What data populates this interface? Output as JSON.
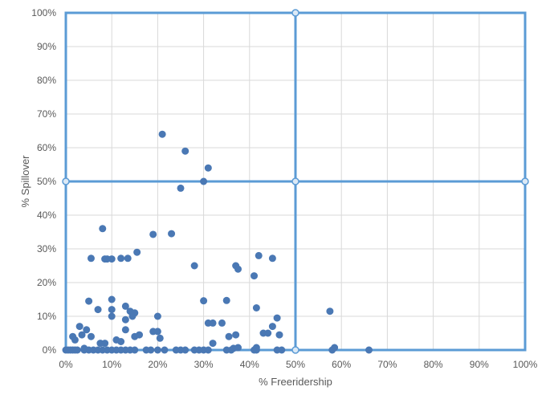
{
  "chart_data": {
    "type": "scatter",
    "xlabel": "% Freeridership",
    "ylabel": "% Spillover",
    "xlim": [
      0,
      1
    ],
    "ylim": [
      0,
      1
    ],
    "x_ticks": [
      "0%",
      "10%",
      "20%",
      "30%",
      "40%",
      "50%",
      "60%",
      "70%",
      "80%",
      "90%",
      "100%"
    ],
    "y_ticks": [
      "0%",
      "10%",
      "20%",
      "30%",
      "40%",
      "50%",
      "60%",
      "70%",
      "80%",
      "90%",
      "100%"
    ],
    "grid": true,
    "colors": {
      "marker": "#4a78b4",
      "frame": "#5b9bd5",
      "quadrant_line": "#5b9bd5",
      "quadrant_marker_fill": "#dbe9f6",
      "grid": "#d9d9d9"
    },
    "quadrant_lines": {
      "x": 0.5,
      "y": 0.5
    },
    "quadrant_markers": [
      {
        "x": 0.5,
        "y": 1.0
      },
      {
        "x": 0.0,
        "y": 0.5
      },
      {
        "x": 0.5,
        "y": 0.5
      },
      {
        "x": 1.0,
        "y": 0.5
      },
      {
        "x": 0.5,
        "y": 0.0
      }
    ],
    "series": [
      {
        "points": [
          {
            "x": 0.0,
            "y": 0.0
          },
          {
            "x": 0.005,
            "y": 0.0
          },
          {
            "x": 0.01,
            "y": 0.0
          },
          {
            "x": 0.015,
            "y": 0.0
          },
          {
            "x": 0.02,
            "y": 0.0
          },
          {
            "x": 0.025,
            "y": 0.0
          },
          {
            "x": 0.04,
            "y": 0.0
          },
          {
            "x": 0.05,
            "y": 0.0
          },
          {
            "x": 0.06,
            "y": 0.0
          },
          {
            "x": 0.07,
            "y": 0.0
          },
          {
            "x": 0.08,
            "y": 0.0
          },
          {
            "x": 0.09,
            "y": 0.0
          },
          {
            "x": 0.1,
            "y": 0.0
          },
          {
            "x": 0.11,
            "y": 0.0
          },
          {
            "x": 0.12,
            "y": 0.0
          },
          {
            "x": 0.13,
            "y": 0.0
          },
          {
            "x": 0.14,
            "y": 0.0
          },
          {
            "x": 0.15,
            "y": 0.0
          },
          {
            "x": 0.175,
            "y": 0.0
          },
          {
            "x": 0.185,
            "y": 0.0
          },
          {
            "x": 0.2,
            "y": 0.0
          },
          {
            "x": 0.215,
            "y": 0.0
          },
          {
            "x": 0.24,
            "y": 0.0
          },
          {
            "x": 0.25,
            "y": 0.0
          },
          {
            "x": 0.26,
            "y": 0.0
          },
          {
            "x": 0.28,
            "y": 0.0
          },
          {
            "x": 0.29,
            "y": 0.0
          },
          {
            "x": 0.3,
            "y": 0.0
          },
          {
            "x": 0.31,
            "y": 0.0
          },
          {
            "x": 0.35,
            "y": 0.0
          },
          {
            "x": 0.36,
            "y": 0.0
          },
          {
            "x": 0.41,
            "y": 0.0
          },
          {
            "x": 0.415,
            "y": 0.0
          },
          {
            "x": 0.46,
            "y": 0.0
          },
          {
            "x": 0.47,
            "y": 0.0
          },
          {
            "x": 0.58,
            "y": 0.0
          },
          {
            "x": 0.66,
            "y": 0.0
          },
          {
            "x": 0.015,
            "y": 0.04
          },
          {
            "x": 0.02,
            "y": 0.03
          },
          {
            "x": 0.03,
            "y": 0.07
          },
          {
            "x": 0.035,
            "y": 0.045
          },
          {
            "x": 0.04,
            "y": 0.005
          },
          {
            "x": 0.045,
            "y": 0.06
          },
          {
            "x": 0.05,
            "y": 0.145
          },
          {
            "x": 0.055,
            "y": 0.04
          },
          {
            "x": 0.055,
            "y": 0.272
          },
          {
            "x": 0.07,
            "y": 0.12
          },
          {
            "x": 0.075,
            "y": 0.02
          },
          {
            "x": 0.08,
            "y": 0.36
          },
          {
            "x": 0.085,
            "y": 0.27
          },
          {
            "x": 0.085,
            "y": 0.02
          },
          {
            "x": 0.09,
            "y": 0.27
          },
          {
            "x": 0.1,
            "y": 0.15
          },
          {
            "x": 0.1,
            "y": 0.12
          },
          {
            "x": 0.1,
            "y": 0.1
          },
          {
            "x": 0.1,
            "y": 0.27
          },
          {
            "x": 0.11,
            "y": 0.03
          },
          {
            "x": 0.12,
            "y": 0.272
          },
          {
            "x": 0.12,
            "y": 0.025
          },
          {
            "x": 0.13,
            "y": 0.13
          },
          {
            "x": 0.13,
            "y": 0.09
          },
          {
            "x": 0.13,
            "y": 0.06
          },
          {
            "x": 0.135,
            "y": 0.272
          },
          {
            "x": 0.14,
            "y": 0.115
          },
          {
            "x": 0.145,
            "y": 0.1
          },
          {
            "x": 0.15,
            "y": 0.11
          },
          {
            "x": 0.15,
            "y": 0.04
          },
          {
            "x": 0.155,
            "y": 0.29
          },
          {
            "x": 0.16,
            "y": 0.045
          },
          {
            "x": 0.19,
            "y": 0.343
          },
          {
            "x": 0.19,
            "y": 0.055
          },
          {
            "x": 0.2,
            "y": 0.1
          },
          {
            "x": 0.2,
            "y": 0.055
          },
          {
            "x": 0.205,
            "y": 0.035
          },
          {
            "x": 0.21,
            "y": 0.64
          },
          {
            "x": 0.23,
            "y": 0.345
          },
          {
            "x": 0.25,
            "y": 0.48
          },
          {
            "x": 0.26,
            "y": 0.59
          },
          {
            "x": 0.28,
            "y": 0.25
          },
          {
            "x": 0.3,
            "y": 0.5
          },
          {
            "x": 0.3,
            "y": 0.146
          },
          {
            "x": 0.31,
            "y": 0.54
          },
          {
            "x": 0.31,
            "y": 0.08
          },
          {
            "x": 0.32,
            "y": 0.08
          },
          {
            "x": 0.32,
            "y": 0.02
          },
          {
            "x": 0.34,
            "y": 0.08
          },
          {
            "x": 0.35,
            "y": 0.147
          },
          {
            "x": 0.355,
            "y": 0.04
          },
          {
            "x": 0.365,
            "y": 0.005
          },
          {
            "x": 0.37,
            "y": 0.25
          },
          {
            "x": 0.37,
            "y": 0.045
          },
          {
            "x": 0.375,
            "y": 0.24
          },
          {
            "x": 0.375,
            "y": 0.007
          },
          {
            "x": 0.41,
            "y": 0.22
          },
          {
            "x": 0.415,
            "y": 0.125
          },
          {
            "x": 0.415,
            "y": 0.007
          },
          {
            "x": 0.42,
            "y": 0.28
          },
          {
            "x": 0.43,
            "y": 0.05
          },
          {
            "x": 0.44,
            "y": 0.05
          },
          {
            "x": 0.45,
            "y": 0.07
          },
          {
            "x": 0.45,
            "y": 0.272
          },
          {
            "x": 0.46,
            "y": 0.095
          },
          {
            "x": 0.465,
            "y": 0.045
          },
          {
            "x": 0.575,
            "y": 0.115
          },
          {
            "x": 0.585,
            "y": 0.007
          }
        ]
      }
    ]
  }
}
